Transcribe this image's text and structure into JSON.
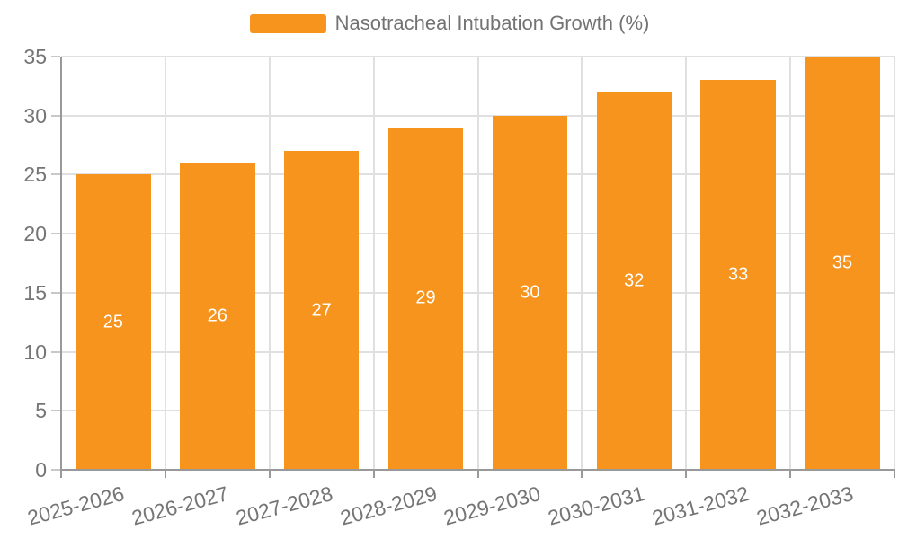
{
  "chart_data": {
    "type": "bar",
    "title": "",
    "xlabel": "",
    "ylabel": "",
    "categories": [
      "2025-2026",
      "2026-2027",
      "2027-2028",
      "2028-2029",
      "2029-2030",
      "2030-2031",
      "2031-2032",
      "2032-2033"
    ],
    "series": [
      {
        "name": "Nasotracheal Intubation Growth (%)",
        "values": [
          25,
          26,
          27,
          29,
          30,
          32,
          33,
          35
        ]
      }
    ],
    "value_labels_shown": true,
    "ylim": [
      0,
      35
    ],
    "y_ticks": [
      0,
      5,
      10,
      15,
      20,
      25,
      30,
      35
    ],
    "grid": true,
    "legend_position": "top-center",
    "colors": {
      "bar": "#F7941E",
      "value_label": "#ffffff",
      "axis_line": "#999999",
      "gridline": "#e0e0e0",
      "axis_text": "#757575",
      "legend_text": "#737373",
      "background": "#ffffff"
    }
  }
}
